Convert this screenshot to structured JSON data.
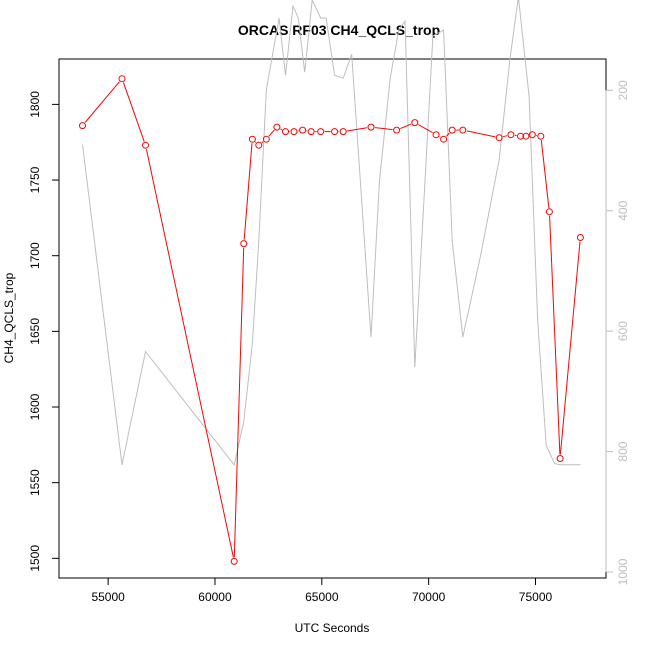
{
  "chart_data": {
    "type": "line",
    "title": "ORCAS RF03 CH4_QCLS_trop",
    "xlabel": "UTC Seconds",
    "ylabel": "CH4_QCLS_trop",
    "xlim": [
      52700,
      78300
    ],
    "ylim": [
      1487,
      1830
    ],
    "y2lim": [
      1010,
      148
    ],
    "y2_reversed": true,
    "grid": false,
    "x_ticks": [
      55000,
      60000,
      65000,
      70000,
      75000
    ],
    "y_ticks": [
      1500,
      1550,
      1600,
      1650,
      1700,
      1750,
      1800
    ],
    "y2_ticks": [
      200,
      400,
      600,
      800,
      1000
    ],
    "colors": {
      "primary": "#ff0000",
      "secondary": "#bebebe"
    },
    "series": [
      {
        "axis": "left",
        "style": "line+points",
        "x": [
          53800,
          55650,
          56750,
          60900,
          61350,
          61750,
          62050,
          62400,
          62900,
          63300,
          63700,
          64100,
          64500,
          64950,
          65600,
          66000,
          67300,
          68500,
          69350,
          70350,
          70700,
          71100,
          71600,
          73300,
          73850,
          74300,
          74550,
          74850,
          75250,
          75650,
          76150,
          77100
        ],
        "y": [
          1786,
          1817,
          1773,
          1498,
          1708,
          1777,
          1773,
          1777,
          1785,
          1782,
          1782,
          1783,
          1782,
          1782,
          1782,
          1782,
          1785,
          1783,
          1788,
          1780,
          1777,
          1783,
          1783,
          1778,
          1780,
          1779,
          1779,
          1780,
          1779,
          1729,
          1566,
          1712
        ]
      },
      {
        "axis": "right",
        "style": "line",
        "x": [
          53800,
          55650,
          56750,
          60900,
          61350,
          61750,
          62050,
          62400,
          62750,
          63000,
          63300,
          63650,
          63900,
          64200,
          64550,
          64950,
          65200,
          65600,
          66000,
          66400,
          67300,
          67700,
          68200,
          68600,
          68900,
          69350,
          70200,
          70700,
          71100,
          71600,
          72400,
          73300,
          73800,
          74200,
          74700,
          75100,
          75500,
          75900,
          76150,
          77100
        ],
        "y": [
          290,
          822,
          634,
          822,
          750,
          620,
          450,
          200,
          130,
          80,
          175,
          60,
          80,
          170,
          50,
          80,
          80,
          175,
          180,
          140,
          610,
          350,
          180,
          100,
          85,
          660,
          110,
          100,
          450,
          610,
          480,
          315,
          150,
          45,
          210,
          580,
          790,
          820,
          822,
          822
        ]
      }
    ]
  }
}
